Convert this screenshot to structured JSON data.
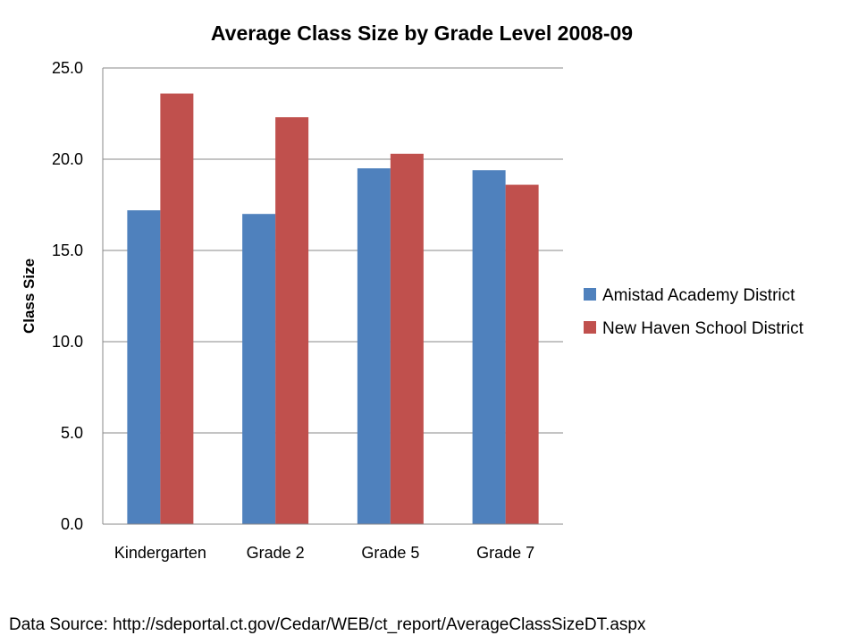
{
  "chart_data": {
    "type": "bar",
    "title": "Average Class Size by Grade Level 2008-09",
    "xlabel": "",
    "ylabel": "Class Size",
    "categories": [
      "Kindergarten",
      "Grade  2",
      "Grade  5",
      "Grade  7"
    ],
    "series": [
      {
        "name": "Amistad Academy District",
        "color": "#4F81BD",
        "values": [
          17.2,
          17.0,
          19.5,
          19.4
        ]
      },
      {
        "name": "New Haven School District",
        "color": "#C0504D",
        "values": [
          23.6,
          22.3,
          20.3,
          18.6
        ]
      }
    ],
    "ylim": [
      0,
      25
    ],
    "yticks": [
      "0.0",
      "5.0",
      "10.0",
      "15.0",
      "20.0",
      "25.0"
    ],
    "ytick_values": [
      0,
      5,
      10,
      15,
      20,
      25
    ],
    "grid": true,
    "legend_position": "right"
  },
  "footer": {
    "source": "Data Source: http://sdeportal.ct.gov/Cedar/WEB/ct_report/AverageClassSizeDT.aspx"
  }
}
